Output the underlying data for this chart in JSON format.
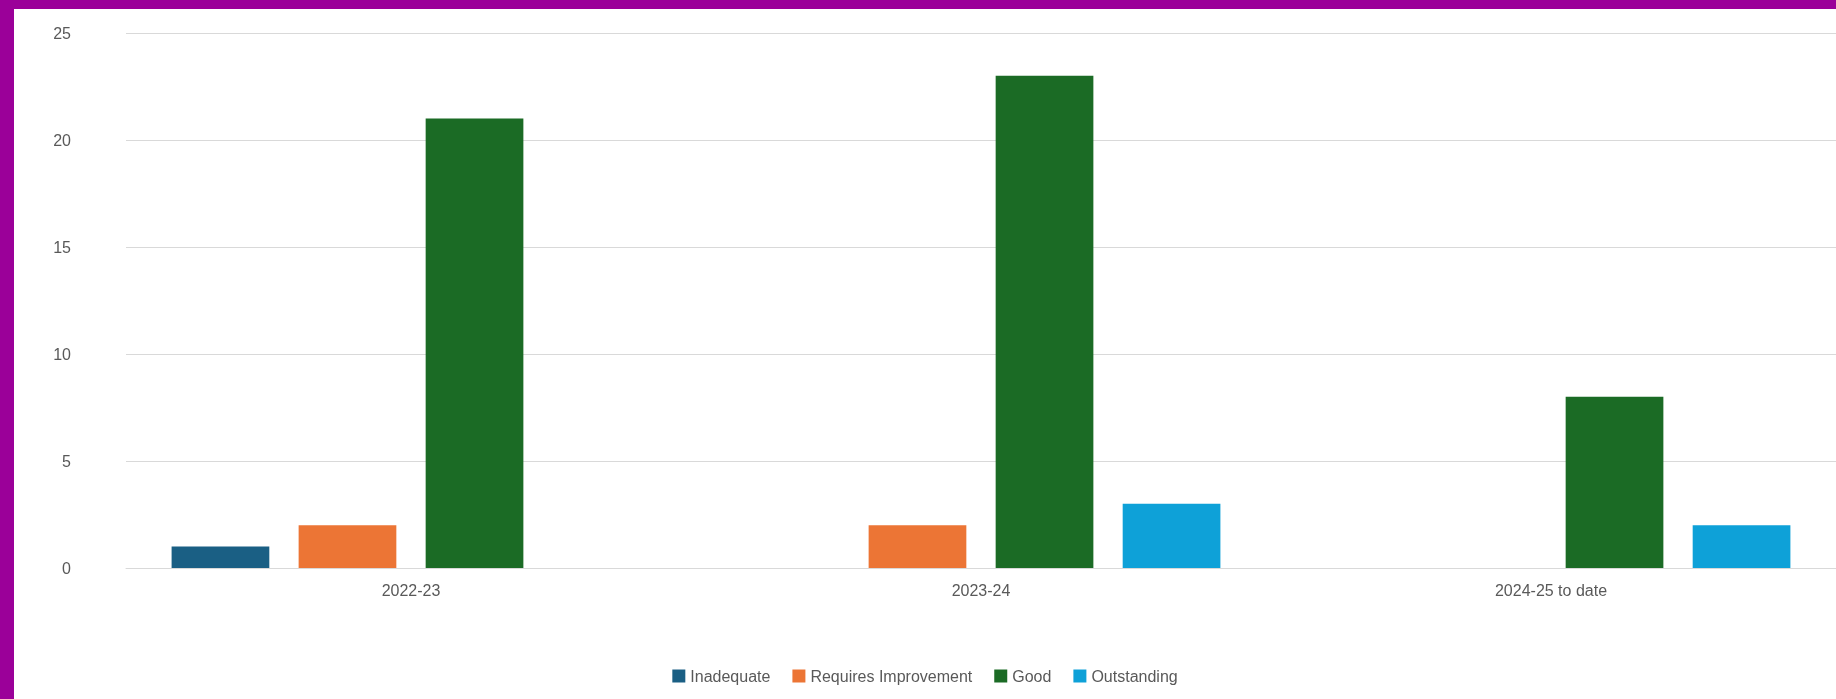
{
  "chart_data": {
    "type": "bar",
    "categories": [
      "2022-23",
      "2023-24",
      "2024-25 to date"
    ],
    "series": [
      {
        "name": "Inadequate",
        "color": "#1a5f84",
        "values": [
          1,
          0,
          0
        ]
      },
      {
        "name": "Requires Improvement",
        "color": "#ec7535",
        "values": [
          2,
          2,
          0
        ]
      },
      {
        "name": "Good",
        "color": "#1b6b25",
        "values": [
          21,
          23,
          8
        ]
      },
      {
        "name": "Outstanding",
        "color": "#0ea1d8",
        "values": [
          0,
          3,
          2
        ]
      }
    ],
    "ylim": [
      0,
      25
    ],
    "yticks": [
      0,
      5,
      10,
      15,
      20,
      25
    ],
    "grid": "y",
    "legend": "bottom"
  }
}
